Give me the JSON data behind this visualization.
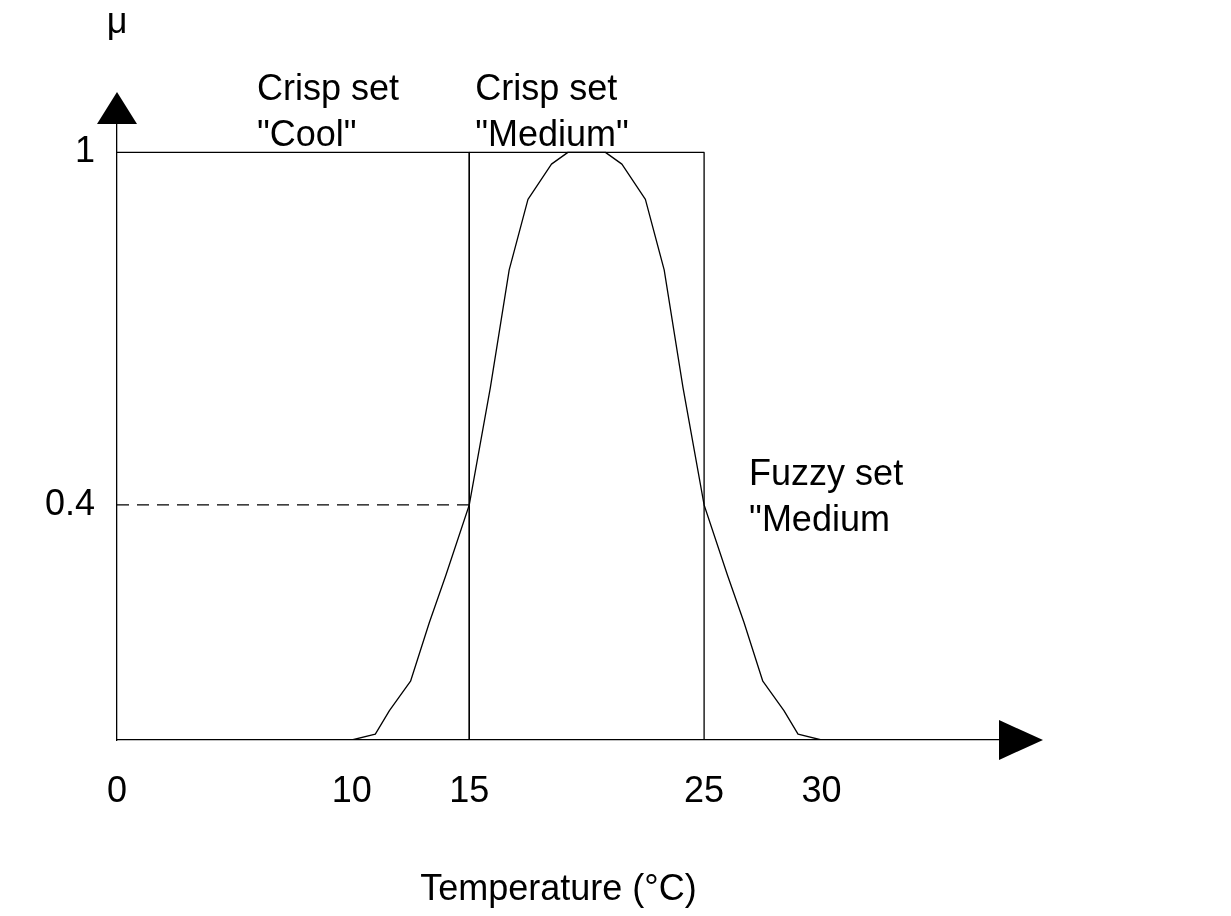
{
  "chart_data": {
    "type": "line",
    "xlabel": "Temperature (°C)",
    "ylabel": "μ",
    "xlim": [
      0,
      37.6
    ],
    "ylim": [
      0,
      1.05
    ],
    "xticks": [
      0,
      10,
      15,
      25,
      30
    ],
    "yticks": [
      0.4,
      1
    ],
    "grid": false,
    "legend": false,
    "marker": "none",
    "series": [
      {
        "name": "Crisp set \"Cool\"",
        "type": "step",
        "color": "#000000",
        "x": [
          0,
          15,
          15
        ],
        "values": [
          1,
          1,
          0
        ]
      },
      {
        "name": "Crisp set \"Medium\"",
        "type": "step",
        "color": "#000000",
        "x": [
          15,
          15,
          25,
          25
        ],
        "values": [
          0,
          1,
          1,
          0
        ]
      },
      {
        "name": "Fuzzy set \"Medium",
        "type": "line",
        "color": "#000000",
        "x": [
          10,
          11,
          11.6,
          12.5,
          13.3,
          14,
          15,
          15.9,
          16.7,
          17.5,
          18.5,
          19.2,
          20,
          20.8,
          21.5,
          22.5,
          23.3,
          24.1,
          25,
          26,
          26.7,
          27.5,
          28.4,
          29,
          30
        ],
        "values": [
          0,
          0.01,
          0.05,
          0.1,
          0.2,
          0.28,
          0.4,
          0.6,
          0.8,
          0.92,
          0.98,
          1,
          1,
          1,
          0.98,
          0.92,
          0.8,
          0.6,
          0.4,
          0.28,
          0.2,
          0.1,
          0.05,
          0.01,
          0
        ]
      },
      {
        "type": "line",
        "line_style": "dashed",
        "color": "#000000",
        "x": [
          0,
          15
        ],
        "values": [
          0.4,
          0.4
        ]
      }
    ]
  }
}
